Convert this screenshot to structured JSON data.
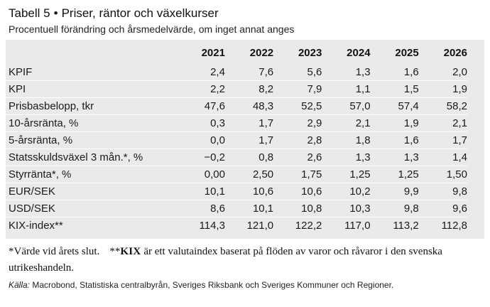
{
  "header": {
    "table_number": "Tabell 5",
    "bullet": "•",
    "title": "Priser, räntor och växelkurser",
    "subtitle": "Procentuell förändring och årsmedelvärde, om inget annat anges"
  },
  "table": {
    "years": [
      "2021",
      "2022",
      "2023",
      "2024",
      "2025",
      "2026"
    ],
    "rows": [
      {
        "label": "KPIF",
        "values": [
          "2,4",
          "7,6",
          "5,6",
          "1,3",
          "1,6",
          "2,0"
        ]
      },
      {
        "label": "KPI",
        "values": [
          "2,2",
          "8,2",
          "7,9",
          "1,1",
          "1,5",
          "1,9"
        ]
      },
      {
        "label": "Prisbasbelopp, tkr",
        "values": [
          "47,6",
          "48,3",
          "52,5",
          "57,0",
          "57,4",
          "58,2"
        ]
      },
      {
        "label": "10-årsränta, %",
        "values": [
          "0,3",
          "1,7",
          "2,9",
          "2,1",
          "1,9",
          "2,1"
        ]
      },
      {
        "label": "5-årsränta, %",
        "values": [
          "0,0",
          "1,7",
          "2,8",
          "1,8",
          "1,6",
          "1,7"
        ]
      },
      {
        "label": "Statsskuldsväxel 3 mån.*, %",
        "values": [
          "−0,2",
          "0,8",
          "2,6",
          "1,3",
          "1,3",
          "1,4"
        ]
      },
      {
        "label": "Styrränta*, %",
        "values": [
          "0,00",
          "2,50",
          "1,75",
          "1,25",
          "1,25",
          "1,50"
        ]
      },
      {
        "label": "EUR/SEK",
        "values": [
          "10,1",
          "10,6",
          "10,6",
          "10,2",
          "9,9",
          "9,8"
        ]
      },
      {
        "label": "USD/SEK",
        "values": [
          "8,6",
          "10,1",
          "10,8",
          "10,3",
          "9,8",
          "9,6"
        ]
      },
      {
        "label": "KIX-index**",
        "values": [
          "114,3",
          "121,0",
          "122,2",
          "117,0",
          "113,2",
          "112,8"
        ]
      }
    ]
  },
  "footnotes": {
    "note1": "*Värde vid årets slut.",
    "note2_prefix": "**",
    "note2_kix": "KIX",
    "note2_text": " är ett valutaindex baserat på flöden av varor och råvaror i den svenska utrikeshandeln."
  },
  "source": {
    "label": "Källa:",
    "text": " Macrobond, Statistiska centralbyrån, Sveriges Riksbank och Sveriges Kommuner och Regioner."
  },
  "colors": {
    "panel_background": "#eaeaec",
    "row_divider": "#ffffff",
    "text": "#1a1a1a"
  }
}
